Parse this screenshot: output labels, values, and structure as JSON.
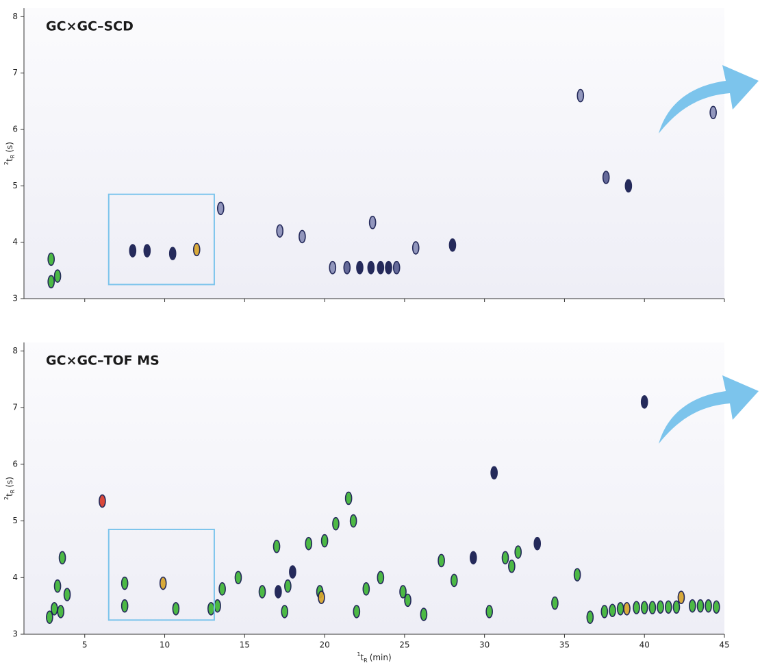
{
  "chart_data": [
    {
      "type": "scatter",
      "title": "GC×GC–SCD",
      "y_label": [
        "2",
        "t",
        "R",
        "(s)"
      ],
      "xlim": [
        1.2,
        45
      ],
      "ylim": [
        3,
        8.15
      ],
      "xticks": [
        5,
        10,
        15,
        20,
        25,
        30,
        35,
        40,
        45
      ],
      "xtick_labels": false,
      "yticks": [
        3,
        4,
        5,
        6,
        7,
        8
      ],
      "x": [
        2.9,
        2.9,
        3.3,
        8.0,
        8.9,
        10.5,
        12.0,
        20.5,
        21.4,
        22.2,
        22.9,
        23.5,
        24.0,
        24.5,
        25.7,
        28.0,
        39.0,
        37.6,
        36.0,
        44.3,
        23.0,
        18.6,
        17.2,
        13.5
      ],
      "y": [
        3.7,
        3.3,
        3.4,
        3.85,
        3.85,
        3.8,
        3.87,
        3.55,
        3.55,
        3.55,
        3.55,
        3.55,
        3.55,
        3.55,
        3.9,
        3.95,
        5.0,
        5.15,
        6.6,
        6.3,
        4.35,
        4.1,
        4.2,
        4.6
      ],
      "colors": [
        "#3fb536",
        "#3fb536",
        "#3fb536",
        "#141a4e",
        "#141a4e",
        "#141a4e",
        "#d8a52a",
        "#8a8fb8",
        "#5a5f92",
        "#141a4e",
        "#141a4e",
        "#141a4e",
        "#141a4e",
        "#5a5f92",
        "#8a8fb8",
        "#141a4e",
        "#141a4e",
        "#5a5f92",
        "#8a8fb8",
        "#8a8fb8",
        "#8a8fb8",
        "#8a8fb8",
        "#8a8fb8",
        "#8a8fb8"
      ],
      "highlight": {
        "x": [
          6.5,
          13.1
        ],
        "y": [
          3.25,
          4.85
        ],
        "color": "#7cc4ec"
      }
    },
    {
      "type": "scatter",
      "title": "GC×GC–TOF MS",
      "y_label": [
        "2",
        "t",
        "R",
        "(s)"
      ],
      "x_label": [
        "1",
        "t",
        "R",
        "(min)"
      ],
      "xlim": [
        1.2,
        45
      ],
      "ylim": [
        3,
        8.15
      ],
      "xticks": [
        5,
        10,
        15,
        20,
        25,
        30,
        35,
        40,
        45
      ],
      "xtick_labels": true,
      "yticks": [
        3,
        4,
        5,
        6,
        7,
        8
      ],
      "x": [
        2.8,
        3.1,
        3.3,
        3.6,
        3.9,
        3.5,
        6.1,
        7.5,
        7.5,
        9.9,
        10.7,
        12.9,
        13.3,
        13.6,
        14.6,
        16.1,
        17.0,
        17.1,
        17.5,
        17.7,
        18.0,
        19.0,
        19.7,
        19.8,
        20.0,
        20.7,
        21.5,
        21.8,
        22.0,
        22.6,
        23.5,
        24.9,
        25.2,
        26.2,
        27.3,
        28.1,
        29.3,
        30.3,
        30.6,
        31.3,
        31.7,
        32.1,
        33.3,
        34.4,
        35.8,
        36.6,
        38.9,
        40.0,
        42.3,
        37.5,
        38.0,
        38.5,
        39.5,
        40.0,
        40.5,
        41.0,
        41.5,
        42.0,
        43.0,
        43.5,
        44.0,
        44.5
      ],
      "y": [
        3.3,
        3.45,
        3.85,
        4.35,
        3.7,
        3.4,
        5.35,
        3.5,
        3.9,
        3.9,
        3.45,
        3.45,
        3.5,
        3.8,
        4.0,
        3.75,
        4.55,
        3.75,
        3.4,
        3.85,
        4.1,
        4.6,
        3.75,
        3.65,
        4.65,
        4.95,
        5.4,
        5.0,
        3.4,
        3.8,
        4.0,
        3.75,
        3.6,
        3.35,
        4.3,
        3.95,
        4.35,
        3.4,
        5.85,
        4.35,
        4.2,
        4.45,
        4.6,
        3.55,
        4.05,
        3.3,
        3.45,
        7.1,
        3.65,
        3.4,
        3.42,
        3.45,
        3.47,
        3.47,
        3.47,
        3.48,
        3.48,
        3.48,
        3.5,
        3.5,
        3.5,
        3.48
      ],
      "colors": [
        "#3fb536",
        "#3fb536",
        "#3fb536",
        "#3fb536",
        "#3fb536",
        "#3fb536",
        "#d83a2a",
        "#3fb536",
        "#3fb536",
        "#d8a52a",
        "#3fb536",
        "#3fb536",
        "#3fb536",
        "#3fb536",
        "#3fb536",
        "#3fb536",
        "#3fb536",
        "#141a4e",
        "#3fb536",
        "#3fb536",
        "#141a4e",
        "#3fb536",
        "#3fb536",
        "#d8a52a",
        "#3fb536",
        "#3fb536",
        "#3fb536",
        "#3fb536",
        "#3fb536",
        "#3fb536",
        "#3fb536",
        "#3fb536",
        "#3fb536",
        "#3fb536",
        "#3fb536",
        "#3fb536",
        "#141a4e",
        "#3fb536",
        "#141a4e",
        "#3fb536",
        "#3fb536",
        "#3fb536",
        "#141a4e",
        "#3fb536",
        "#3fb536",
        "#3fb536",
        "#d8a52a",
        "#141a4e",
        "#d8a52a",
        "#3fb536",
        "#3fb536",
        "#3fb536",
        "#3fb536",
        "#3fb536",
        "#3fb536",
        "#3fb536",
        "#3fb536",
        "#3fb536",
        "#3fb536",
        "#3fb536",
        "#3fb536",
        "#3fb536"
      ],
      "highlight": {
        "x": [
          6.5,
          13.1
        ],
        "y": [
          3.25,
          4.85
        ],
        "color": "#7cc4ec"
      }
    }
  ]
}
